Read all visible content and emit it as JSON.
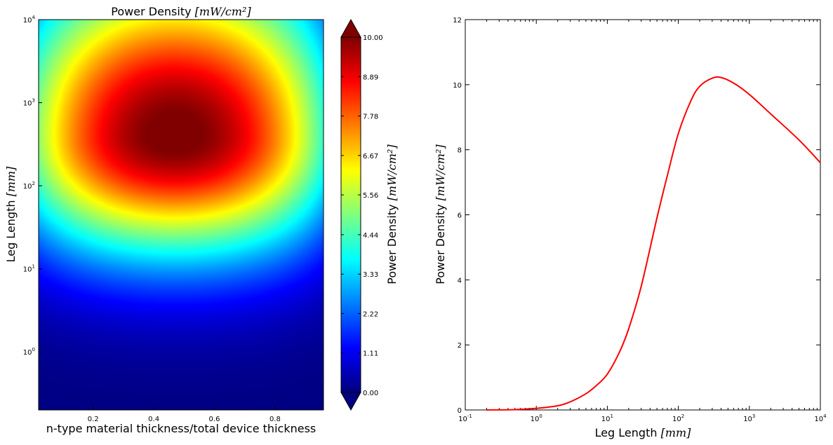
{
  "chart_data": [
    {
      "type": "heatmap",
      "title": "Power Density [mW/cm²]",
      "title_text": "Power Density ",
      "title_math": "[mW/cm²]",
      "xlabel": "n-type material thickness/total device thickness",
      "ylabel_text": "Leg Length ",
      "ylabel_math": "[mm]",
      "x_range": [
        0.02,
        0.96
      ],
      "y_range": [
        0.2,
        10000
      ],
      "y_scale": "log",
      "x_ticks": [
        "0.2",
        "0.4",
        "0.6",
        "0.8"
      ],
      "x_tick_values": [
        0.2,
        0.4,
        0.6,
        0.8
      ],
      "y_tick_exponents": [
        "0",
        "1",
        "2",
        "3",
        "4"
      ],
      "y_tick_base": "10",
      "peak": {
        "x": 0.47,
        "leg_length_mm": 400,
        "value": 10.2
      },
      "colormap": "jet",
      "colorbar": {
        "label_text": "Power Density ",
        "label_math": "[mW/cm²]",
        "min": 0.0,
        "max": 10.0,
        "ticks": [
          "0.00",
          "1.11",
          "2.22",
          "3.33",
          "4.44",
          "5.56",
          "6.67",
          "7.78",
          "8.89",
          "10.00"
        ],
        "extend": "both"
      }
    },
    {
      "type": "line",
      "series": [
        {
          "name": "Power Density",
          "color": "#ff0000",
          "x": [
            0.2,
            0.5,
            1,
            2,
            3,
            5,
            7,
            10,
            15,
            20,
            30,
            50,
            70,
            100,
            150,
            200,
            300,
            400,
            600,
            1000,
            2000,
            5000,
            10000
          ],
          "y": [
            0.0,
            0.01,
            0.05,
            0.13,
            0.25,
            0.5,
            0.75,
            1.1,
            1.8,
            2.5,
            3.8,
            5.9,
            7.2,
            8.5,
            9.5,
            9.95,
            10.2,
            10.22,
            10.05,
            9.7,
            9.1,
            8.3,
            7.6
          ]
        }
      ],
      "xlabel_text": "Leg Length ",
      "xlabel_math": "[mm]",
      "ylabel_text": "Power Density ",
      "ylabel_math": "[mW/cm²]",
      "x_scale": "log",
      "xlim": [
        0.1,
        10000
      ],
      "ylim": [
        0,
        12
      ],
      "y_ticks": [
        "0",
        "2",
        "4",
        "6",
        "8",
        "10",
        "12"
      ],
      "x_tick_exponents": [
        "-1",
        "0",
        "1",
        "2",
        "3",
        "4"
      ],
      "x_tick_base": "10"
    }
  ]
}
